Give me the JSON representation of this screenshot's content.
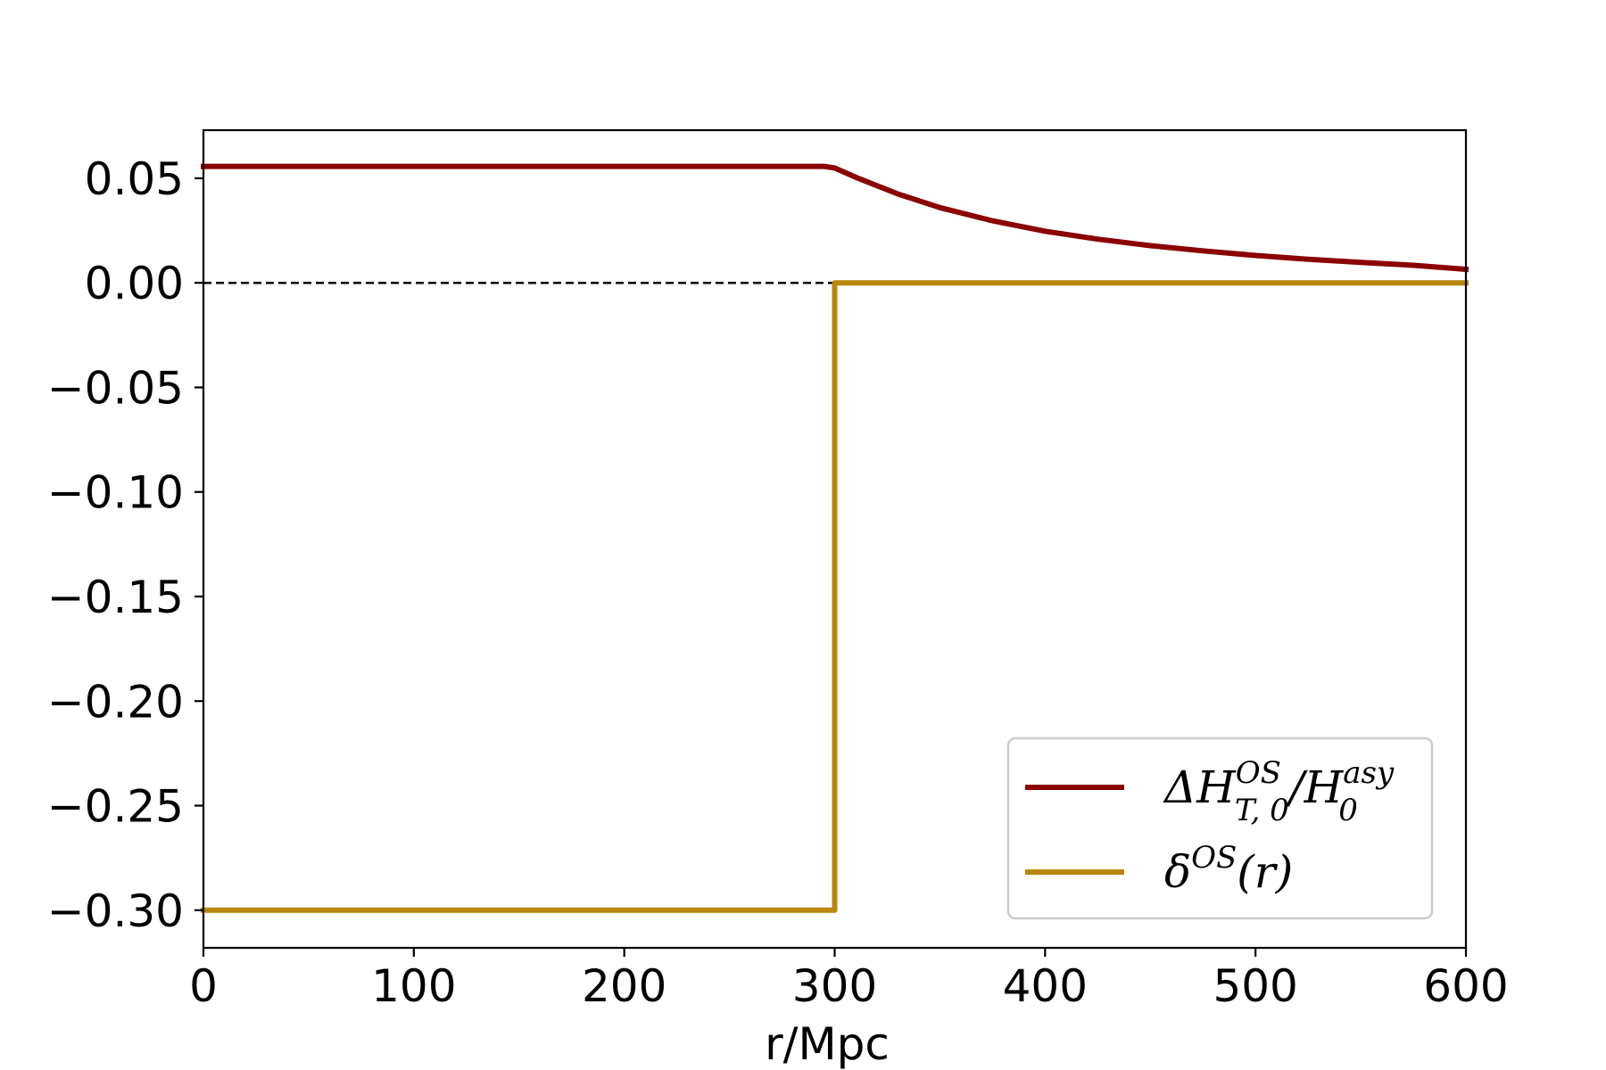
{
  "chart_data": {
    "type": "line",
    "title": "",
    "xlabel": "r/Mpc",
    "ylabel": "",
    "xlim": [
      0,
      600
    ],
    "ylim": [
      -0.318,
      0.073
    ],
    "xticks": [
      0,
      100,
      200,
      300,
      400,
      500,
      600
    ],
    "xtick_labels": [
      "0",
      "100",
      "200",
      "300",
      "400",
      "500",
      "600"
    ],
    "yticks": [
      0.05,
      0.0,
      -0.05,
      -0.1,
      -0.15,
      -0.2,
      -0.25,
      -0.3
    ],
    "ytick_labels": [
      "0.05",
      "0.00",
      "−0.05",
      "−0.10",
      "−0.15",
      "−0.20",
      "−0.25",
      "−0.30"
    ],
    "grid": false,
    "legend_position": "lower-right",
    "reference_lines": [
      {
        "y": 0.0,
        "style": "dashed",
        "color": "#000000"
      }
    ],
    "series": [
      {
        "name": "ΔH^{OS}_{T,0}/H^{asy}_0",
        "name_parts": {
          "base": "ΔH",
          "sup": "OS",
          "sub": "T, 0",
          "slash": "/H",
          "sub2": "0",
          "sup2": "asy"
        },
        "color": "#8b0000",
        "x": [
          0,
          100,
          200,
          295,
          300,
          310,
          330,
          350,
          375,
          400,
          425,
          450,
          475,
          500,
          525,
          550,
          575,
          600
        ],
        "y": [
          0.0557,
          0.0557,
          0.0557,
          0.0557,
          0.0549,
          0.0505,
          0.0425,
          0.036,
          0.0297,
          0.0247,
          0.0209,
          0.0178,
          0.0153,
          0.0131,
          0.0113,
          0.0098,
          0.0084,
          0.0065
        ]
      },
      {
        "name": "δ^{OS}(r)",
        "name_parts": {
          "base": "δ",
          "sup": "OS",
          "tail": "(r)"
        },
        "color": "#b8860b",
        "x": [
          0,
          300,
          300,
          600
        ],
        "y": [
          -0.3,
          -0.3,
          0.0,
          0.0
        ]
      }
    ]
  }
}
